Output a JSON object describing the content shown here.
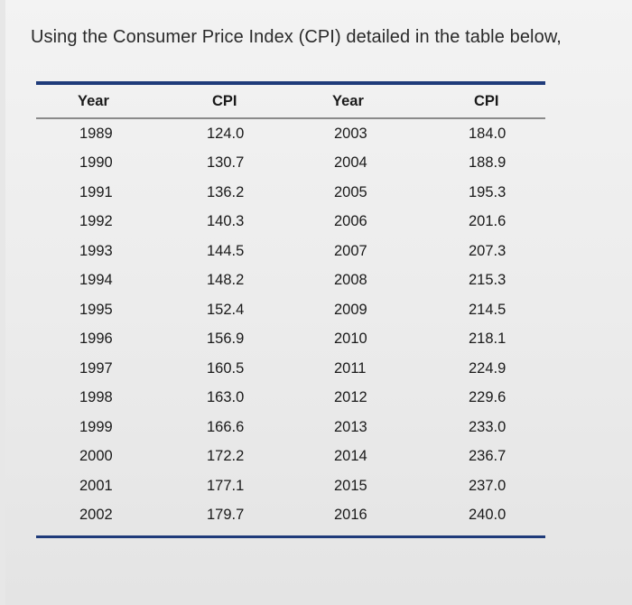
{
  "intro_text": "Using the Consumer Price Index (CPI) detailed in the table below,",
  "table": {
    "headers": [
      "Year",
      "CPI",
      "Year",
      "CPI"
    ],
    "rows": [
      [
        "1989",
        "124.0",
        "2003",
        "184.0"
      ],
      [
        "1990",
        "130.7",
        "2004",
        "188.9"
      ],
      [
        "1991",
        "136.2",
        "2005",
        "195.3"
      ],
      [
        "1992",
        "140.3",
        "2006",
        "201.6"
      ],
      [
        "1993",
        "144.5",
        "2007",
        "207.3"
      ],
      [
        "1994",
        "148.2",
        "2008",
        "215.3"
      ],
      [
        "1995",
        "152.4",
        "2009",
        "214.5"
      ],
      [
        "1996",
        "156.9",
        "2010",
        "218.1"
      ],
      [
        "1997",
        "160.5",
        "2011",
        "224.9"
      ],
      [
        "1998",
        "163.0",
        "2012",
        "229.6"
      ],
      [
        "1999",
        "166.6",
        "2013",
        "233.0"
      ],
      [
        "2000",
        "172.2",
        "2014",
        "236.7"
      ],
      [
        "2001",
        "177.1",
        "2015",
        "237.0"
      ],
      [
        "2002",
        "179.7",
        "2016",
        "240.0"
      ]
    ]
  },
  "colors": {
    "rule": "#1f3b7a",
    "text": "#1a1a1a"
  }
}
